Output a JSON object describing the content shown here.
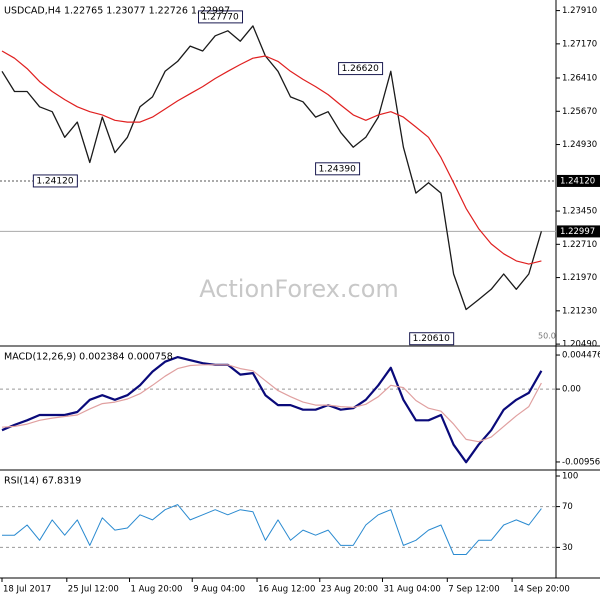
{
  "chart_data": [
    {
      "type": "line",
      "title": "USDCAD,H4  1.22765 1.23077 1.22726 1.22997",
      "watermark": "ActionForex.com",
      "ma_label": "50.0",
      "x": [
        0,
        6,
        12,
        18,
        24,
        30,
        36,
        42,
        48,
        54,
        60,
        66,
        72,
        78,
        84,
        90,
        96,
        102,
        108,
        114,
        120,
        126,
        132,
        138,
        144,
        150,
        156,
        162,
        168,
        174,
        180,
        186,
        192,
        198,
        204,
        210,
        216,
        222,
        228,
        234,
        240,
        246,
        252,
        258
      ],
      "xlim": [
        0,
        265
      ],
      "series": [
        {
          "color": "#1a1a1a",
          "width": 1.3,
          "values": [
            1.2656,
            1.2611,
            1.2611,
            1.2577,
            1.2566,
            1.2509,
            1.2543,
            1.2453,
            1.2554,
            1.2475,
            1.2509,
            1.2577,
            1.2599,
            1.2656,
            1.2678,
            1.2712,
            1.2701,
            1.2735,
            1.2746,
            1.2723,
            1.2757,
            1.269,
            1.2656,
            1.2599,
            1.2588,
            1.2554,
            1.2566,
            1.252,
            1.2487,
            1.2509,
            1.2554,
            1.2656,
            1.2487,
            1.2385,
            1.2408,
            1.2385,
            1.2205,
            1.2126,
            1.2148,
            1.2171,
            1.2205,
            1.2171,
            1.2205,
            1.23
          ]
        },
        {
          "color": "#e02020",
          "width": 1.2,
          "values": [
            1.2701,
            1.2685,
            1.2662,
            1.2633,
            1.2611,
            1.2593,
            1.2577,
            1.2566,
            1.2559,
            1.2547,
            1.2543,
            1.2543,
            1.2554,
            1.2572,
            1.259,
            1.2606,
            1.2622,
            1.264,
            1.2656,
            1.2671,
            1.2685,
            1.269,
            1.2678,
            1.2656,
            1.2638,
            1.2622,
            1.2604,
            1.2581,
            1.2559,
            1.2547,
            1.2559,
            1.2566,
            1.2554,
            1.2532,
            1.2509,
            1.2464,
            1.2408,
            1.2351,
            1.2306,
            1.2272,
            1.225,
            1.2234,
            1.2227,
            1.2234
          ]
        }
      ],
      "ylim": [
        1.2047,
        1.2799
      ],
      "yticks": [
        {
          "value": 1.2791,
          "label": "1.27910"
        },
        {
          "value": 1.2717,
          "label": "1.27170"
        },
        {
          "value": 1.2641,
          "label": "1.26410"
        },
        {
          "value": 1.2567,
          "label": "1.25670"
        },
        {
          "value": 1.2493,
          "label": "1.24930"
        },
        {
          "value": 1.2345,
          "label": "1.23450"
        },
        {
          "value": 1.2271,
          "label": "1.22710"
        },
        {
          "value": 1.2197,
          "label": "1.21970"
        },
        {
          "value": 1.2123,
          "label": "1.21230"
        },
        {
          "value": 1.2049,
          "label": "1.20490"
        }
      ],
      "price_tags": [
        {
          "value": 1.2412,
          "label": "1.24120",
          "style": "dotted"
        },
        {
          "value": 1.22997,
          "label": "1.22997",
          "style": "solid"
        }
      ],
      "annotations": [
        {
          "x": 94,
          "value": 1.2777,
          "label": "1.27770"
        },
        {
          "x": 161,
          "value": 1.2662,
          "label": "1.26620"
        },
        {
          "x": 150,
          "value": 1.2439,
          "label": "1.24390"
        },
        {
          "x": 15,
          "value": 1.2412,
          "label": "1.24120"
        },
        {
          "x": 195,
          "value": 1.2061,
          "label": "1.20610"
        }
      ]
    },
    {
      "type": "line",
      "title": "MACD(12,26,9) 0.002384 0.000758",
      "x": [
        0,
        6,
        12,
        18,
        24,
        30,
        36,
        42,
        48,
        54,
        60,
        66,
        72,
        78,
        84,
        90,
        96,
        102,
        108,
        114,
        120,
        126,
        132,
        138,
        144,
        150,
        156,
        162,
        168,
        174,
        180,
        186,
        192,
        198,
        204,
        210,
        216,
        222,
        228,
        234,
        240,
        246,
        252,
        258
      ],
      "xlim": [
        0,
        265
      ],
      "series": [
        {
          "color": "#0a0a7a",
          "width": 2.2,
          "values": [
            -0.0054,
            -0.0047,
            -0.0041,
            -0.0034,
            -0.0034,
            -0.0034,
            -0.003,
            -0.0014,
            -0.0008,
            -0.0014,
            -0.0008,
            0.0005,
            0.0023,
            0.0036,
            0.0042,
            0.0038,
            0.0034,
            0.0032,
            0.0032,
            0.0019,
            0.0021,
            -0.0008,
            -0.0021,
            -0.0021,
            -0.0027,
            -0.0027,
            -0.0021,
            -0.0027,
            -0.0025,
            -0.0014,
            0.0005,
            0.0028,
            -0.0014,
            -0.0041,
            -0.0041,
            -0.0034,
            -0.0073,
            -0.0096,
            -0.0073,
            -0.0054,
            -0.0027,
            -0.0014,
            -0.0005,
            0.0024
          ]
        },
        {
          "color": "#e0a0a0",
          "width": 1.2,
          "values": [
            -0.005,
            -0.0049,
            -0.0046,
            -0.0041,
            -0.0038,
            -0.0036,
            -0.0034,
            -0.0026,
            -0.0019,
            -0.0017,
            -0.0013,
            -0.0006,
            0.0005,
            0.0017,
            0.0027,
            0.0031,
            0.0032,
            0.0032,
            0.0032,
            0.0027,
            0.0024,
            0.0011,
            -0.0002,
            -0.001,
            -0.0017,
            -0.0021,
            -0.0021,
            -0.0023,
            -0.0024,
            -0.002,
            -0.001,
            0.0005,
            0.0002,
            -0.0015,
            -0.0025,
            -0.0029,
            -0.0046,
            -0.0066,
            -0.0069,
            -0.0063,
            -0.0049,
            -0.0035,
            -0.0023,
            0.0008
          ]
        }
      ],
      "ylim": [
        -0.01036,
        0.0054
      ],
      "yticks": [
        0.004476,
        {
          "value": 0,
          "label": "0.00"
        },
        -0.009567
      ],
      "levels": [
        0
      ]
    },
    {
      "type": "line",
      "title": "RSI(14) 67.8319",
      "x": [
        0,
        6,
        12,
        18,
        24,
        30,
        36,
        42,
        48,
        54,
        60,
        66,
        72,
        78,
        84,
        90,
        96,
        102,
        108,
        114,
        120,
        126,
        132,
        138,
        144,
        150,
        156,
        162,
        168,
        174,
        180,
        186,
        192,
        198,
        204,
        210,
        216,
        222,
        228,
        234,
        240,
        246,
        252,
        258
      ],
      "xlim": [
        0,
        265
      ],
      "series": [
        {
          "color": "#2a8ad0",
          "width": 1,
          "values": [
            42,
            42,
            52,
            37,
            57,
            42,
            57,
            32,
            59,
            47,
            49,
            62,
            57,
            67,
            72,
            57,
            62,
            67,
            62,
            67,
            65,
            37,
            57,
            37,
            47,
            42,
            47,
            32,
            32,
            52,
            62,
            67,
            32,
            37,
            47,
            52,
            23,
            23,
            37,
            37,
            52,
            57,
            52,
            68
          ]
        }
      ],
      "ylim": [
        0,
        100
      ],
      "yticks": [
        100,
        70,
        30
      ],
      "levels": [
        30,
        70
      ],
      "xticks": [
        {
          "value": 0,
          "label": "18 Jul 2017"
        },
        {
          "value": 31,
          "label": "25 Jul 12:00"
        },
        {
          "value": 61,
          "label": "1 Aug 20:00"
        },
        {
          "value": 91,
          "label": "9 Aug 04:00"
        },
        {
          "value": 122,
          "label": "16 Aug 12:00"
        },
        {
          "value": 152,
          "label": "23 Aug 20:00"
        },
        {
          "value": 182,
          "label": "31 Aug 04:00"
        },
        {
          "value": 213,
          "label": "7 Sep 12:00"
        },
        {
          "value": 244,
          "label": "14 Sep 20:00"
        }
      ]
    }
  ]
}
